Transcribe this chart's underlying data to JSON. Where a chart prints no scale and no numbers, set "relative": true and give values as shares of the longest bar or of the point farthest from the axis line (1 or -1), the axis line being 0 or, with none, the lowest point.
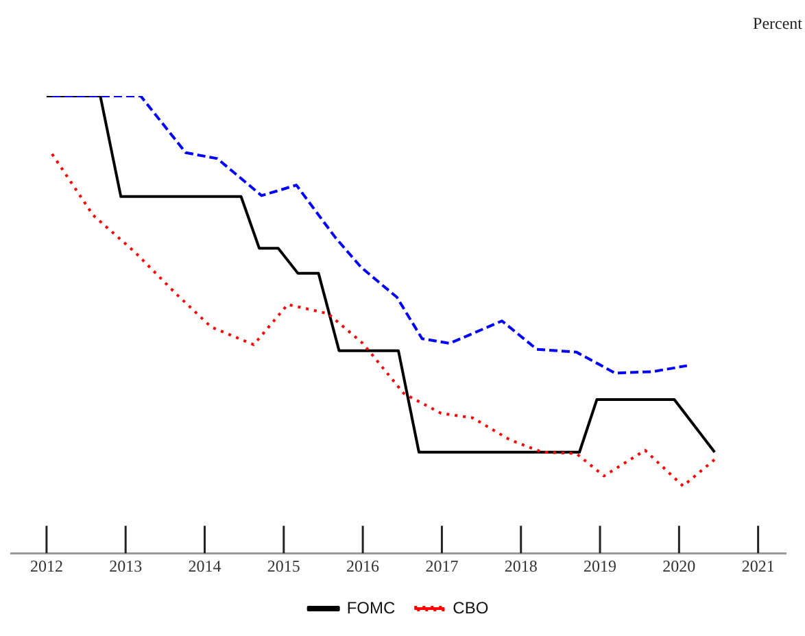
{
  "chart_data": {
    "type": "line",
    "ylabel": "Percent",
    "relative": true,
    "xlim": [
      2011.55,
      2021.35
    ],
    "xticks": [
      2012,
      2013,
      2014,
      2015,
      2016,
      2017,
      2018,
      2019,
      2020,
      2021
    ],
    "grid": false,
    "legend": "bottom",
    "marker": "none",
    "series": [
      {
        "name": "FOMC",
        "color": "#000000",
        "line_style": "solid",
        "x": [
          2012,
          2012.68,
          2012.94,
          2014.46,
          2014.69,
          2014.93,
          2015.18,
          2015.44,
          2015.7,
          2016.45,
          2016.71,
          2018.74,
          2018.96,
          2019.94,
          2020.45
        ],
        "values": [
          1,
          1,
          0.78,
          0.78,
          0.667,
          0.667,
          0.612,
          0.612,
          0.443,
          0.443,
          0.221,
          0.221,
          0.336,
          0.336,
          0.221
        ]
      },
      {
        "color": "#0000ff",
        "line_style": "dashed",
        "x": [
          2012.07,
          2013.19,
          2013.76,
          2014.16,
          2014.72,
          2015.16,
          2015.65,
          2015.98,
          2016.43,
          2016.75,
          2017.1,
          2017.76,
          2018.2,
          2018.7,
          2019.19,
          2019.66,
          2020.1
        ],
        "values": [
          1,
          1,
          0.876,
          0.863,
          0.782,
          0.805,
          0.691,
          0.625,
          0.56,
          0.469,
          0.459,
          0.508,
          0.446,
          0.44,
          0.394,
          0.397,
          0.41
        ]
      },
      {
        "name": "CBO",
        "color": "#ff0000",
        "line_style": "dotted",
        "x": [
          2012.07,
          2012.59,
          2013.12,
          2013.64,
          2014.08,
          2014.62,
          2015.05,
          2015.56,
          2016.0,
          2016.52,
          2016.99,
          2017.39,
          2017.86,
          2018.27,
          2018.7,
          2019.05,
          2019.57,
          2020.05,
          2020.45
        ],
        "values": [
          0.873,
          0.739,
          0.658,
          0.567,
          0.495,
          0.456,
          0.544,
          0.524,
          0.459,
          0.349,
          0.306,
          0.296,
          0.248,
          0.221,
          0.218,
          0.169,
          0.225,
          0.147,
          0.205
        ]
      }
    ]
  }
}
